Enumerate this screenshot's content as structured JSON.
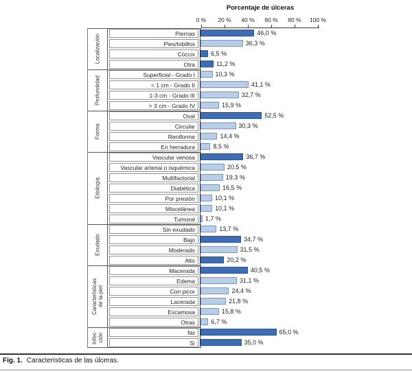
{
  "title": "Porcentaje de úlceras",
  "caption": {
    "label": "Fig. 1.",
    "text": "Características de las úlceras."
  },
  "axis_ticks": [
    "0 %",
    "20 %",
    "40 %",
    "60 %",
    "80 %",
    "100 %"
  ],
  "colors": {
    "dark": "#3f6db5",
    "dark_border": "#2d548f",
    "light": "#b9cde7",
    "light_border": "#7b94bd"
  },
  "chart_data": {
    "type": "bar",
    "orientation": "horizontal",
    "title": "Porcentaje de úlceras",
    "xlabel": "Porcentaje de úlceras",
    "xlim": [
      0,
      100
    ],
    "x_ticks": [
      0,
      20,
      40,
      60,
      80,
      100
    ],
    "groups": [
      {
        "label": "Localización",
        "display_label": "Localización",
        "items": [
          {
            "name": "Piernas",
            "value": 46.0,
            "display": "46,0 %",
            "shade": "dark"
          },
          {
            "name": "Pies/tobillos",
            "value": 36.3,
            "display": "36,3 %",
            "shade": "light"
          },
          {
            "name": "Cóccix",
            "value": 6.5,
            "display": "6,5 %",
            "shade": "dark"
          },
          {
            "name": "Otra",
            "value": 11.2,
            "display": "11,2 %",
            "shade": "dark"
          }
        ]
      },
      {
        "label": "Profundidad",
        "display_label": "Profundidad",
        "items": [
          {
            "name": "Superficial - Grado I",
            "value": 10.3,
            "display": "10,3 %",
            "shade": "light"
          },
          {
            "name": "< 1 cm - Grado II",
            "value": 41.1,
            "display": "41,1 %",
            "shade": "light"
          },
          {
            "name": "1-3 cm - Grado III",
            "value": 32.7,
            "display": "32,7 %",
            "shade": "light"
          },
          {
            "name": "> 3 cm - Grado IV",
            "value": 15.9,
            "display": "15,9 %",
            "shade": "light"
          }
        ]
      },
      {
        "label": "Forma",
        "display_label": "Forma",
        "items": [
          {
            "name": "Oval",
            "value": 52.5,
            "display": "52,5 %",
            "shade": "dark"
          },
          {
            "name": "Circular",
            "value": 30.3,
            "display": "30,3 %",
            "shade": "light"
          },
          {
            "name": "Reniforme",
            "value": 14.4,
            "display": "14,4 %",
            "shade": "light"
          },
          {
            "name": "En herradura",
            "value": 8.5,
            "display": "8,5 %",
            "shade": "light"
          }
        ]
      },
      {
        "label": "Etiología",
        "display_label": "Etiología",
        "items": [
          {
            "name": "Vascular venosa",
            "value": 36.7,
            "display": "36,7 %",
            "shade": "dark"
          },
          {
            "name": "Vascular arterial o isquémica",
            "value": 20.5,
            "display": "20,5 %",
            "shade": "light"
          },
          {
            "name": "Multifactorial",
            "value": 19.3,
            "display": "19,3 %",
            "shade": "light"
          },
          {
            "name": "Diabética",
            "value": 16.5,
            "display": "16,5 %",
            "shade": "light"
          },
          {
            "name": "Por presión",
            "value": 10.1,
            "display": "10,1 %",
            "shade": "light"
          },
          {
            "name": "Miscelánea",
            "value": 10.1,
            "display": "10,1 %",
            "shade": "light"
          },
          {
            "name": "Tumoral",
            "value": 1.7,
            "display": "1,7 %",
            "shade": "light"
          }
        ]
      },
      {
        "label": "Exudado",
        "display_label": "Exudado",
        "items": [
          {
            "name": "Sin exudado",
            "value": 13.7,
            "display": "13,7 %",
            "shade": "light"
          },
          {
            "name": "Bajo",
            "value": 34.7,
            "display": "34,7 %",
            "shade": "dark"
          },
          {
            "name": "Moderado",
            "value": 31.5,
            "display": "31,5 %",
            "shade": "light"
          },
          {
            "name": "Alto",
            "value": 20.2,
            "display": "20,2 %",
            "shade": "dark"
          }
        ]
      },
      {
        "label": "Características de la piel",
        "display_label": "Características\nde la piel",
        "items": [
          {
            "name": "Macerada",
            "value": 40.5,
            "display": "40,5 %",
            "shade": "dark"
          },
          {
            "name": "Edema",
            "value": 31.1,
            "display": "31,1 %",
            "shade": "light"
          },
          {
            "name": "Con picor",
            "value": 24.4,
            "display": "24,4 %",
            "shade": "light"
          },
          {
            "name": "Lacerada",
            "value": 21.8,
            "display": "21,8 %",
            "shade": "light"
          },
          {
            "name": "Escamosa",
            "value": 15.8,
            "display": "15,8 %",
            "shade": "light"
          },
          {
            "name": "Otras",
            "value": 6.7,
            "display": "6,7 %",
            "shade": "light"
          }
        ]
      },
      {
        "label": "Infección",
        "display_label": "Infec-\nción",
        "items": [
          {
            "name": "No",
            "value": 65.0,
            "display": "65,0 %",
            "shade": "dark"
          },
          {
            "name": "Sí",
            "value": 35.0,
            "display": "35,0 %",
            "shade": "dark"
          }
        ]
      }
    ]
  }
}
